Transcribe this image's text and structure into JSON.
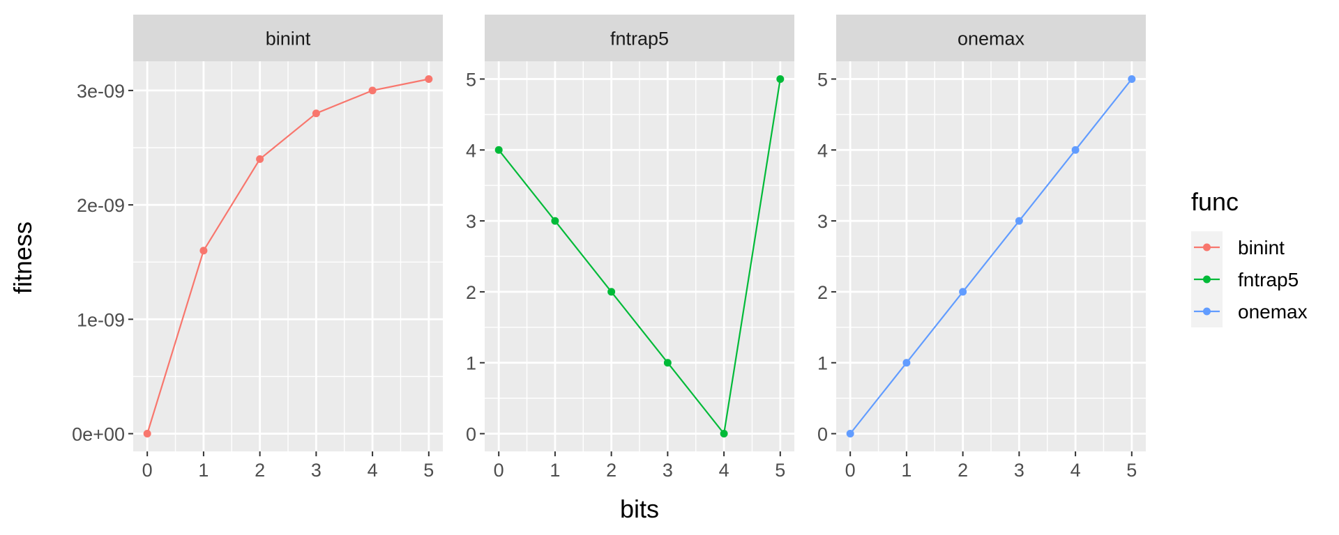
{
  "chart_data": {
    "type": "line",
    "xlabel": "bits",
    "ylabel": "fitness",
    "grid": true,
    "legend": {
      "title": "func",
      "position": "right",
      "entries": [
        {
          "label": "binint",
          "color": "#F8766D"
        },
        {
          "label": "fntrap5",
          "color": "#00BA38"
        },
        {
          "label": "onemax",
          "color": "#619CFF"
        }
      ]
    },
    "facets": [
      {
        "strip": "binint",
        "series_name": "binint",
        "color": "#F8766D",
        "x": [
          0,
          1,
          2,
          3,
          4,
          5
        ],
        "y": [
          0,
          1.6e-09,
          2.4e-09,
          2.8e-09,
          3e-09,
          3.1e-09
        ],
        "xlim": [
          -0.25,
          5.25
        ],
        "ylim": [
          -1.55e-10,
          3.255e-09
        ],
        "xticks": [
          0,
          1,
          2,
          3,
          4,
          5
        ],
        "xtick_labels": [
          "0",
          "1",
          "2",
          "3",
          "4",
          "5"
        ],
        "yticks": [
          0,
          1e-09,
          2e-09,
          3e-09
        ],
        "ytick_labels": [
          "0e+00",
          "1e-09",
          "2e-09",
          "3e-09"
        ]
      },
      {
        "strip": "fntrap5",
        "series_name": "fntrap5",
        "color": "#00BA38",
        "x": [
          0,
          1,
          2,
          3,
          4,
          5
        ],
        "y": [
          4,
          3,
          2,
          1,
          0,
          5
        ],
        "xlim": [
          -0.25,
          5.25
        ],
        "ylim": [
          -0.25,
          5.25
        ],
        "xticks": [
          0,
          1,
          2,
          3,
          4,
          5
        ],
        "xtick_labels": [
          "0",
          "1",
          "2",
          "3",
          "4",
          "5"
        ],
        "yticks": [
          0,
          1,
          2,
          3,
          4,
          5
        ],
        "ytick_labels": [
          "0",
          "1",
          "2",
          "3",
          "4",
          "5"
        ]
      },
      {
        "strip": "onemax",
        "series_name": "onemax",
        "color": "#619CFF",
        "x": [
          0,
          1,
          2,
          3,
          4,
          5
        ],
        "y": [
          0,
          1,
          2,
          3,
          4,
          5
        ],
        "xlim": [
          -0.25,
          5.25
        ],
        "ylim": [
          -0.25,
          5.25
        ],
        "xticks": [
          0,
          1,
          2,
          3,
          4,
          5
        ],
        "xtick_labels": [
          "0",
          "1",
          "2",
          "3",
          "4",
          "5"
        ],
        "yticks": [
          0,
          1,
          2,
          3,
          4,
          5
        ],
        "ytick_labels": [
          "0",
          "1",
          "2",
          "3",
          "4",
          "5"
        ]
      }
    ]
  }
}
